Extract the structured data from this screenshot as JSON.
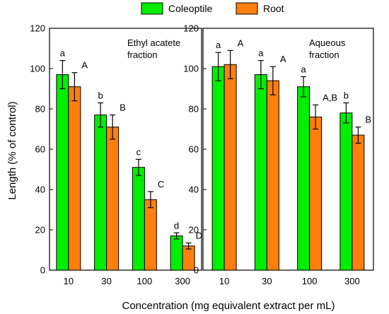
{
  "chart_data": {
    "type": "bar",
    "xlabel": "Concentration (mg equivalent extract per mL)",
    "ylabel": "Length  (% of control)",
    "ylim": [
      0,
      120
    ],
    "yticks": [
      "0",
      "20",
      "40",
      "60",
      "80",
      "100",
      "120"
    ],
    "categories": [
      "10",
      "30",
      "100",
      "300"
    ],
    "legend": [
      {
        "name": "Coleoptile",
        "color": "#00ee00"
      },
      {
        "name": "Root",
        "color": "#ff7f0e"
      }
    ],
    "panels": [
      {
        "title_line1": "Ethyl acatete",
        "title_line2": "fraction",
        "series": [
          {
            "name": "Coleoptile",
            "values": [
              97,
              77,
              51,
              17
            ],
            "errors": [
              7,
              6,
              4,
              1.5
            ],
            "letters": [
              "a",
              "b",
              "c",
              "d"
            ]
          },
          {
            "name": "Root",
            "values": [
              91,
              71,
              35,
              12
            ],
            "errors": [
              7,
              6,
              4,
              1.5
            ],
            "letters": [
              "A",
              "B",
              "C",
              "D"
            ]
          }
        ]
      },
      {
        "title_line1": "Aqueous",
        "title_line2": "fraction",
        "series": [
          {
            "name": "Coleoptile",
            "values": [
              101,
              97,
              91,
              78
            ],
            "errors": [
              7,
              7,
              5,
              5
            ],
            "letters": [
              "a",
              "a",
              "a",
              "b"
            ]
          },
          {
            "name": "Root",
            "values": [
              102,
              94,
              76,
              67
            ],
            "errors": [
              7,
              7,
              6,
              4
            ],
            "letters": [
              "A",
              "A",
              "A,B",
              "B"
            ]
          }
        ]
      }
    ]
  }
}
